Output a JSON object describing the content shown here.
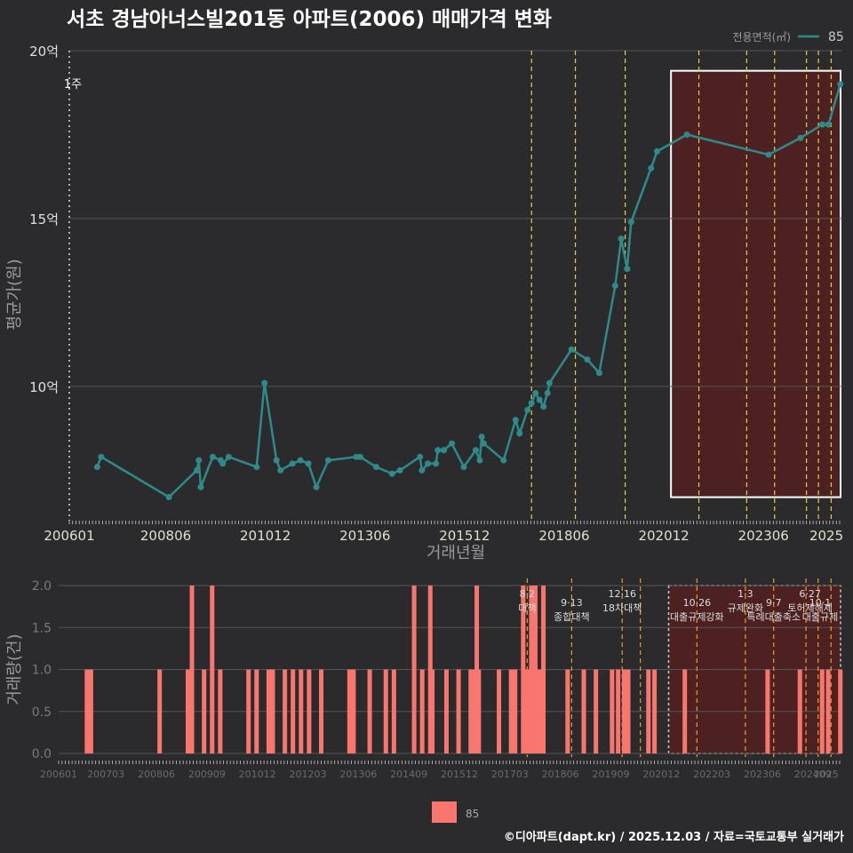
{
  "chart_data": [
    {
      "type": "line",
      "title": "서초 경남아너스빌201동 아파트(2006) 매매가격 변화",
      "xlabel": "거래년월",
      "ylabel": "평균가(원)",
      "legend_title": "전용면적(㎡)",
      "legend": [
        "85"
      ],
      "legend_position": "top-right",
      "ylim": [
        6.0,
        20.0
      ],
      "yticks": [
        {
          "v": 10,
          "label": "10억"
        },
        {
          "v": 15,
          "label": "15억"
        },
        {
          "v": 20,
          "label": "20억"
        }
      ],
      "xlim": [
        2006.0,
        2025.4
      ],
      "xticks": [
        {
          "v": 2006.0,
          "label": "200601"
        },
        {
          "v": 2008.42,
          "label": "200806"
        },
        {
          "v": 2010.92,
          "label": "201012"
        },
        {
          "v": 2013.42,
          "label": "201306"
        },
        {
          "v": 2015.92,
          "label": "201512"
        },
        {
          "v": 2018.42,
          "label": "201806"
        },
        {
          "v": 2020.92,
          "label": "202012"
        },
        {
          "v": 2023.42,
          "label": "202306"
        },
        {
          "v": 2025.0,
          "label": "2025"
        }
      ],
      "policy_lines": [
        2017.6,
        2018.7,
        2019.95,
        2021.8,
        2023.0,
        2023.7,
        2024.5,
        2024.8,
        2025.12
      ],
      "policy_label_dotted": {
        "x": 2006.0,
        "label": "1주"
      },
      "highlight_range_x": [
        2021.1,
        2025.4
      ],
      "highlight_range_y": [
        6.7,
        19.4
      ],
      "series": [
        {
          "name": "85",
          "points": [
            [
              2006.7,
              7.6
            ],
            [
              2006.8,
              7.9
            ],
            [
              2008.5,
              6.7
            ],
            [
              2009.2,
              7.5
            ],
            [
              2009.25,
              7.8
            ],
            [
              2009.3,
              7.0
            ],
            [
              2009.6,
              7.9
            ],
            [
              2009.8,
              7.8
            ],
            [
              2009.85,
              7.7
            ],
            [
              2010.0,
              7.9
            ],
            [
              2010.7,
              7.6
            ],
            [
              2010.9,
              10.1
            ],
            [
              2011.2,
              7.8
            ],
            [
              2011.3,
              7.5
            ],
            [
              2011.6,
              7.7
            ],
            [
              2011.8,
              7.8
            ],
            [
              2012.0,
              7.7
            ],
            [
              2012.2,
              7.0
            ],
            [
              2012.5,
              7.8
            ],
            [
              2013.2,
              7.9
            ],
            [
              2013.3,
              7.9
            ],
            [
              2013.7,
              7.6
            ],
            [
              2014.1,
              7.4
            ],
            [
              2014.3,
              7.5
            ],
            [
              2014.8,
              7.9
            ],
            [
              2014.85,
              7.5
            ],
            [
              2015.0,
              7.7
            ],
            [
              2015.2,
              7.7
            ],
            [
              2015.25,
              8.1
            ],
            [
              2015.4,
              8.1
            ],
            [
              2015.6,
              8.3
            ],
            [
              2015.9,
              7.6
            ],
            [
              2016.2,
              8.1
            ],
            [
              2016.3,
              7.8
            ],
            [
              2016.35,
              8.5
            ],
            [
              2016.4,
              8.3
            ],
            [
              2016.9,
              7.8
            ],
            [
              2017.2,
              9.0
            ],
            [
              2017.3,
              8.6
            ],
            [
              2017.5,
              9.3
            ],
            [
              2017.6,
              9.5
            ],
            [
              2017.7,
              9.8
            ],
            [
              2017.8,
              9.6
            ],
            [
              2017.9,
              9.4
            ],
            [
              2018.0,
              9.8
            ],
            [
              2018.05,
              10.1
            ],
            [
              2018.6,
              11.1
            ],
            [
              2019.0,
              10.8
            ],
            [
              2019.3,
              10.4
            ],
            [
              2019.7,
              13.0
            ],
            [
              2019.85,
              14.4
            ],
            [
              2020.0,
              13.5
            ],
            [
              2020.1,
              14.9
            ],
            [
              2020.6,
              16.5
            ],
            [
              2020.75,
              17.0
            ],
            [
              2021.5,
              17.5
            ],
            [
              2023.55,
              16.9
            ],
            [
              2024.35,
              17.4
            ],
            [
              2024.9,
              17.8
            ],
            [
              2025.05,
              17.8
            ],
            [
              2025.35,
              19.0
            ]
          ]
        }
      ]
    },
    {
      "type": "bar",
      "xlabel": "",
      "ylabel": "거래량(건)",
      "legend": [
        "85"
      ],
      "legend_position": "bottom",
      "ylim": [
        0,
        2.0
      ],
      "yticks": [
        {
          "v": 0.0,
          "label": "0.0"
        },
        {
          "v": 0.5,
          "label": "0.5"
        },
        {
          "v": 1.0,
          "label": "1.0"
        },
        {
          "v": 1.5,
          "label": "1.5"
        },
        {
          "v": 2.0,
          "label": "2.0"
        }
      ],
      "xlim": [
        2006.0,
        2025.4
      ],
      "xticks": [
        {
          "v": 2006.0,
          "label": "200601"
        },
        {
          "v": 2007.17,
          "label": "200703"
        },
        {
          "v": 2008.42,
          "label": "200806"
        },
        {
          "v": 2009.67,
          "label": "200909"
        },
        {
          "v": 2010.92,
          "label": "201012"
        },
        {
          "v": 2012.17,
          "label": "201203"
        },
        {
          "v": 2013.42,
          "label": "201306"
        },
        {
          "v": 2014.67,
          "label": "201409"
        },
        {
          "v": 2015.92,
          "label": "201512"
        },
        {
          "v": 2017.17,
          "label": "201703"
        },
        {
          "v": 2018.42,
          "label": "201806"
        },
        {
          "v": 2019.67,
          "label": "201909"
        },
        {
          "v": 2020.92,
          "label": "202012"
        },
        {
          "v": 2022.17,
          "label": "202203"
        },
        {
          "v": 2023.42,
          "label": "202306"
        },
        {
          "v": 2024.67,
          "label": "202409"
        },
        {
          "v": 2025.0,
          "label": "2025"
        }
      ],
      "policy_lines": [
        2017.6,
        2018.7,
        2019.95,
        2020.4,
        2021.8,
        2023.0,
        2023.7,
        2024.5,
        2024.8,
        2025.12
      ],
      "policy_labels": [
        {
          "x": 2017.6,
          "date": "8·2",
          "name": "대책"
        },
        {
          "x": 2018.7,
          "date": "9·13",
          "name": "종합대책"
        },
        {
          "x": 2019.95,
          "date": "12·16",
          "name": "18차대책"
        },
        {
          "x": 2021.8,
          "date": "10·26",
          "name": "대출규제강화"
        },
        {
          "x": 2023.0,
          "date": "1·3",
          "name": "규제완화"
        },
        {
          "x": 2023.7,
          "date": "9·7",
          "name": "특례대출축소"
        },
        {
          "x": 2024.6,
          "date": "6·27",
          "name": "토허제해제"
        },
        {
          "x": 2024.85,
          "date": "10·1",
          "name": "대출규제"
        }
      ],
      "highlight_range_x": [
        2021.1,
        2025.4
      ],
      "bars": [
        [
          2006.7,
          1
        ],
        [
          2006.8,
          1
        ],
        [
          2008.5,
          1
        ],
        [
          2009.2,
          1
        ],
        [
          2009.3,
          2
        ],
        [
          2009.6,
          1
        ],
        [
          2009.8,
          2
        ],
        [
          2010.0,
          1
        ],
        [
          2010.7,
          1
        ],
        [
          2010.9,
          1
        ],
        [
          2011.2,
          1
        ],
        [
          2011.3,
          1
        ],
        [
          2011.6,
          1
        ],
        [
          2011.8,
          1
        ],
        [
          2012.0,
          1
        ],
        [
          2012.2,
          1
        ],
        [
          2012.5,
          1
        ],
        [
          2013.2,
          1
        ],
        [
          2013.3,
          1
        ],
        [
          2013.7,
          1
        ],
        [
          2014.1,
          1
        ],
        [
          2014.3,
          1
        ],
        [
          2014.8,
          2
        ],
        [
          2015.0,
          1
        ],
        [
          2015.2,
          2
        ],
        [
          2015.25,
          1
        ],
        [
          2015.6,
          1
        ],
        [
          2015.9,
          1
        ],
        [
          2016.2,
          1
        ],
        [
          2016.3,
          1
        ],
        [
          2016.35,
          2
        ],
        [
          2016.4,
          1
        ],
        [
          2016.9,
          1
        ],
        [
          2017.2,
          1
        ],
        [
          2017.3,
          1
        ],
        [
          2017.5,
          2
        ],
        [
          2017.6,
          1
        ],
        [
          2017.7,
          2
        ],
        [
          2017.8,
          2
        ],
        [
          2017.9,
          1
        ],
        [
          2018.0,
          2
        ],
        [
          2018.6,
          1
        ],
        [
          2019.0,
          1
        ],
        [
          2019.3,
          1
        ],
        [
          2019.7,
          1
        ],
        [
          2019.85,
          1
        ],
        [
          2020.0,
          1
        ],
        [
          2020.1,
          1
        ],
        [
          2020.6,
          1
        ],
        [
          2020.75,
          1
        ],
        [
          2021.5,
          1
        ],
        [
          2023.55,
          1
        ],
        [
          2024.35,
          1
        ],
        [
          2024.9,
          1
        ],
        [
          2025.05,
          1
        ],
        [
          2025.35,
          1
        ]
      ]
    }
  ],
  "footer": "©디아파트(dapt.kr) / 2025.12.03 / 자료=국토교통부 실거래가",
  "colors": {
    "background": "#2b2b2d",
    "line": "#2f8a8a",
    "bar": "#f8766d",
    "highlight": "#5a1f1f",
    "policy_line": "#e8d03a",
    "grid": "#555555"
  }
}
